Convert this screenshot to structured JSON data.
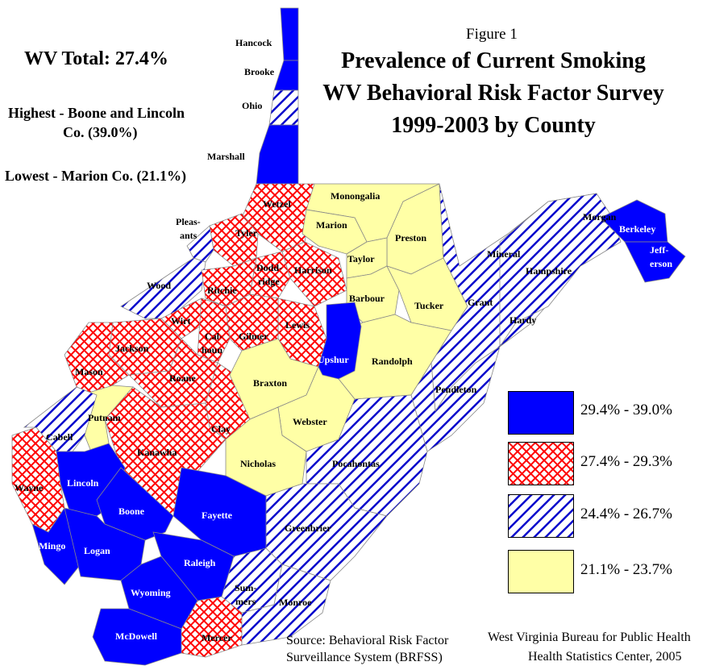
{
  "figure_label": "Figure 1",
  "title": [
    "Prevalence of Current Smoking",
    "WV Behavioral Risk Factor Survey",
    "1999-2003 by County"
  ],
  "summary": {
    "total": "WV Total:  27.4%",
    "highest_1": "Highest - Boone and Lincoln",
    "highest_2": "Co. (39.0%)",
    "lowest": "Lowest - Marion Co. (21.1%)"
  },
  "colors": {
    "high": "#0000ff",
    "midhigh": "#ff0000",
    "midlow": "#0000cc",
    "low": "#ffffa6"
  },
  "legend": [
    {
      "label": "29.4% - 39.0%",
      "style": "solid-blue"
    },
    {
      "label": "27.4% - 29.3%",
      "style": "red-crosshatch"
    },
    {
      "label": "24.4% - 26.7%",
      "style": "blue-diagonal"
    },
    {
      "label": "21.1% - 23.7%",
      "style": "light-yellow"
    }
  ],
  "counties": {
    "hancock": "Hancock",
    "brooke": "Brooke",
    "ohio": "Ohio",
    "marshall": "Marshall",
    "wetzel": "Wetzel",
    "pleasants_1": "Pleas-",
    "pleasants_2": "ants",
    "tyler": "Tyler",
    "monongalia": "Monongalia",
    "marion": "Marion",
    "preston": "Preston",
    "taylor": "Taylor",
    "doddridge_1": "Dodd-",
    "doddridge_2": "ridge",
    "harrison": "Harrison",
    "wood": "Wood",
    "ritchie": "Ritchie",
    "barbour": "Barbour",
    "tucker": "Tucker",
    "grant": "Grant",
    "mineral": "Mineral",
    "hampshire": "Hampshire",
    "morgan": "Morgan",
    "berkeley": "Berkeley",
    "jefferson_1": "Jeff-",
    "jefferson_2": "erson",
    "wirt": "Wirt",
    "calhoun_1": "Cal-",
    "calhoun_2": "houn",
    "gilmer": "Gilmer",
    "lewis": "Lewis",
    "upshur": "Upshur",
    "randolph": "Randolph",
    "hardy": "Hardy",
    "jackson": "Jackson",
    "mason": "Mason",
    "roane": "Roane",
    "braxton": "Braxton",
    "pendleton": "Pendleton",
    "putnam": "Putnam",
    "webster": "Webster",
    "clay": "Clay",
    "cabell": "Cabell",
    "kanawha": "Kanawha",
    "nicholas": "Nicholas",
    "pocahontas": "Pocahontas",
    "wayne": "Wayne",
    "lincoln": "Lincoln",
    "boone": "Boone",
    "fayette": "Fayette",
    "greenbrier": "Greenbrier",
    "mingo": "Mingo",
    "logan": "Logan",
    "raleigh": "Raleigh",
    "wyoming": "Wyoming",
    "summers_1": "Sum-",
    "summers_2": "mers",
    "monroe": "Monroe",
    "mcdowell": "McDowell",
    "mercer": "Mercer"
  },
  "source": {
    "line1": "Source:  Behavioral Risk Factor",
    "line2": "Surveillance System (BRFSS)",
    "agency1": "West Virginia Bureau for Public Health",
    "agency2": "Health Statistics Center, 2005"
  }
}
